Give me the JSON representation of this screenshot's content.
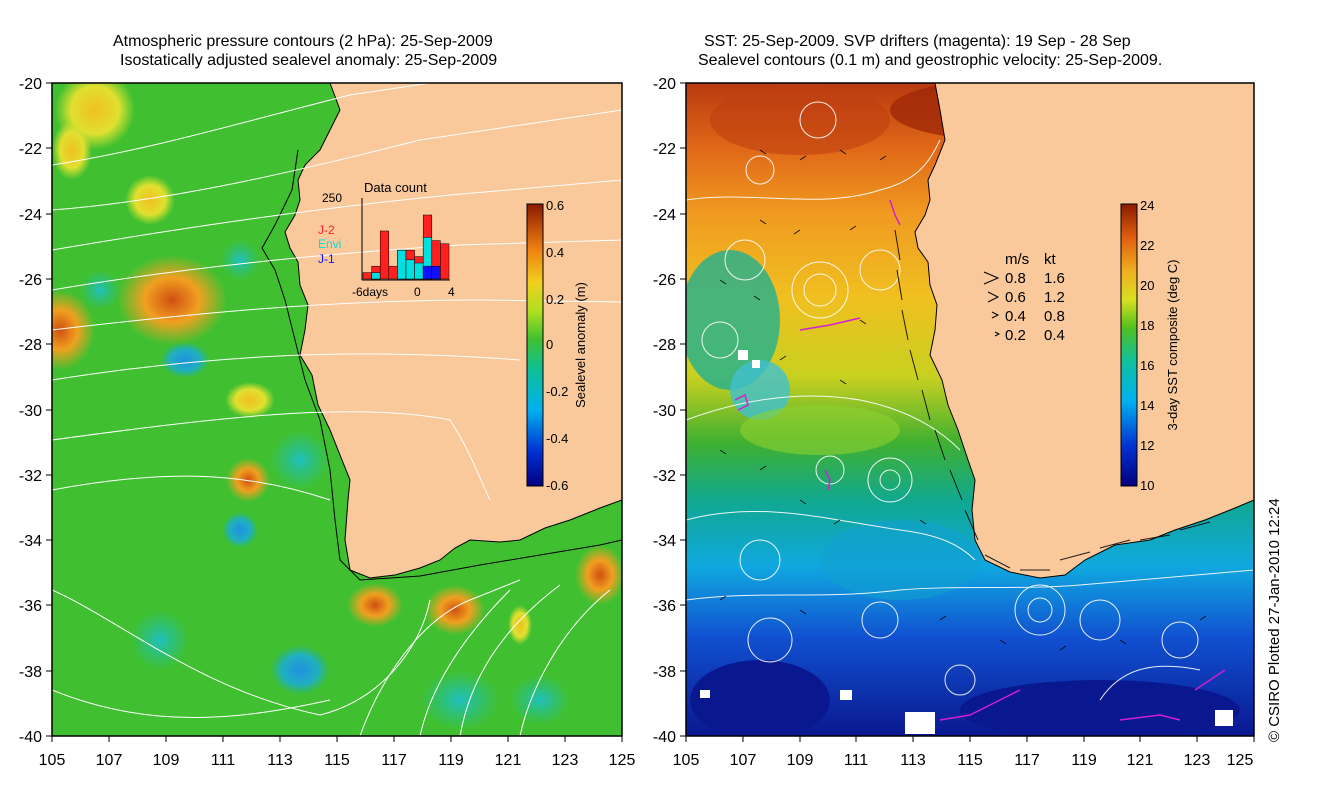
{
  "left_map": {
    "title_line1": "Atmospheric pressure contours (2 hPa): 25-Sep-2009",
    "title_line2": "Isostatically adjusted sealevel anomaly: 25-Sep-2009",
    "lat_ticks": [
      "-20",
      "-22",
      "-24",
      "-26",
      "-28",
      "-30",
      "-32",
      "-34",
      "-36",
      "-38",
      "-40"
    ],
    "lon_ticks": [
      "105",
      "107",
      "109",
      "111",
      "113",
      "115",
      "117",
      "119",
      "121",
      "123",
      "125"
    ],
    "colorbar": {
      "label": "Sealevel anomaly (m)",
      "ticks": [
        "0.6",
        "0.4",
        "0.2",
        "0",
        "-0.2",
        "-0.4",
        "-0.6"
      ]
    },
    "inset": {
      "title": "Data count",
      "ymax_label": "250",
      "x_labels": [
        "-6days",
        "0",
        "4"
      ],
      "legend": [
        {
          "label": "J-2",
          "color": "#ff2020"
        },
        {
          "label": "Envi",
          "color": "#00e0e0"
        },
        {
          "label": "J-1",
          "color": "#1010ff"
        }
      ],
      "bars": {
        "days": [
          -6,
          -5,
          -4,
          -3,
          -2,
          -1,
          0,
          1,
          2,
          3
        ],
        "j2": [
          20,
          40,
          150,
          40,
          90,
          90,
          70,
          200,
          120,
          110
        ],
        "envi": [
          0,
          20,
          0,
          0,
          90,
          60,
          50,
          130,
          0,
          0
        ],
        "j1": [
          0,
          0,
          0,
          0,
          0,
          0,
          0,
          40,
          40,
          0
        ]
      }
    }
  },
  "right_map": {
    "title_line1": "SST: 25-Sep-2009. SVP drifters (magenta): 19 Sep - 28 Sep",
    "title_line2": "Sealevel contours (0.1 m) and geostrophic velocity: 25-Sep-2009.",
    "lat_ticks": [
      "-20",
      "-22",
      "-24",
      "-26",
      "-28",
      "-30",
      "-32",
      "-34",
      "-36",
      "-38",
      "-40"
    ],
    "lon_ticks": [
      "105",
      "107",
      "109",
      "111",
      "113",
      "115",
      "117",
      "119",
      "121",
      "123",
      "125"
    ],
    "colorbar": {
      "label": "3-day SST composite (deg C)",
      "ticks": [
        "24",
        "22",
        "20",
        "18",
        "16",
        "14",
        "12",
        "10"
      ]
    },
    "velocity_legend": {
      "header_ms": "m/s",
      "header_kt": "kt",
      "rows": [
        {
          "ms": "0.8",
          "kt": "1.6"
        },
        {
          "ms": "0.6",
          "kt": "1.2"
        },
        {
          "ms": "0.4",
          "kt": "0.8"
        },
        {
          "ms": "0.2",
          "kt": "0.4"
        }
      ]
    }
  },
  "credit": "© CSIRO Plotted 27-Jan-2010 12:24",
  "colors": {
    "land": "#f9c89b",
    "contour": "#ffffff",
    "coast": "#000000",
    "drifter": "#d020d0"
  }
}
